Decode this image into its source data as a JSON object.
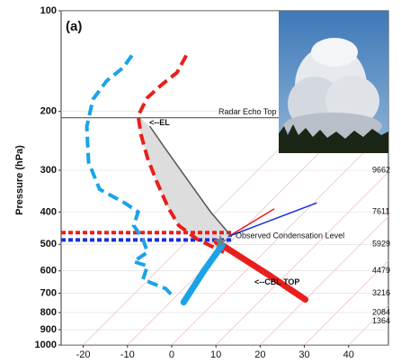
{
  "chart_data": {
    "type": "skewt",
    "panel_label": "(a)",
    "y_label": "Pressure (hPa)",
    "log_y": true,
    "xlim": [
      -25,
      49
    ],
    "xticks": [
      -20,
      -10,
      0,
      10,
      20,
      30,
      40
    ],
    "ylim": [
      1000,
      100
    ],
    "yticks": [
      100,
      200,
      300,
      400,
      500,
      600,
      700,
      800,
      900,
      1000
    ],
    "series": [
      {
        "color": "#e8201c",
        "style": "dashed",
        "width": 4,
        "x": [
          3.3,
          1.2,
          -2.4,
          -5.5,
          -7.6,
          -6.9,
          -5.5,
          -3.5,
          -0.8,
          1.6,
          5.7,
          11.8
        ],
        "y": [
          136,
          153,
          167,
          182,
          206,
          236,
          275,
          322,
          388,
          439,
          482,
          528
        ]
      },
      {
        "color": "#e8201c",
        "style": "solid",
        "width": 7,
        "x": [
          10.2,
          22.0,
          30.2
        ],
        "y": [
          491,
          618,
          731
        ]
      },
      {
        "color": "#1aa3e8",
        "style": "dashed",
        "width": 4,
        "x": [
          -9.0,
          -11.0,
          -14.7,
          -17.8,
          -19.2,
          -18.8,
          -16.3,
          -10.6,
          -7.6,
          -8.6,
          -6.5,
          -5.5,
          -8.6,
          -5.5,
          -6.5,
          -1.4,
          0.6
        ],
        "y": [
          136,
          148,
          162,
          184,
          222,
          284,
          342,
          376,
          400,
          439,
          482,
          528,
          563,
          580,
          637,
          678,
          721
        ]
      },
      {
        "color": "#1aa3e8",
        "style": "solid",
        "width": 7,
        "x": [
          11.4,
          7.3,
          2.7
        ],
        "y": [
          503,
          599,
          745
        ]
      },
      {
        "color": "#555555",
        "style": "solid",
        "width": 1.5,
        "x": [
          -4.9,
          -1.4,
          3.7,
          8.8,
          13.5
        ],
        "y": [
          222,
          259,
          322,
          400,
          473
        ]
      },
      {
        "color": "#e8201c",
        "style": "solid",
        "width": 1.5,
        "x": [
          12.9,
          23.1
        ],
        "y": [
          473,
          392
        ]
      },
      {
        "color": "#1530e0",
        "style": "solid",
        "width": 1.5,
        "x": [
          12.9,
          32.7
        ],
        "y": [
          473,
          376
        ]
      }
    ],
    "marker": {
      "x": 11.0,
      "y": 491,
      "color": "#708090"
    },
    "radar_echo_top": {
      "label": "Radar Echo Top",
      "pressure": 209
    },
    "el": {
      "label": "<--EL",
      "pressure": 217
    },
    "condensation_level": {
      "label": "Observed Condensation Level",
      "pressures": [
        461,
        485
      ],
      "colors": [
        "#e8201c",
        "#1530e0"
      ]
    },
    "cbl_top": {
      "label": "<--CBL TOP",
      "pressure": 650
    },
    "heights": [
      {
        "pressure": 300,
        "label": "9662"
      },
      {
        "pressure": 400,
        "label": "7611"
      },
      {
        "pressure": 500,
        "label": "5929"
      },
      {
        "pressure": 600,
        "label": "4479"
      },
      {
        "pressure": 700,
        "label": "3216"
      },
      {
        "pressure": 800,
        "label": "2084"
      },
      {
        "pressure": 850,
        "label": "1364"
      }
    ]
  }
}
